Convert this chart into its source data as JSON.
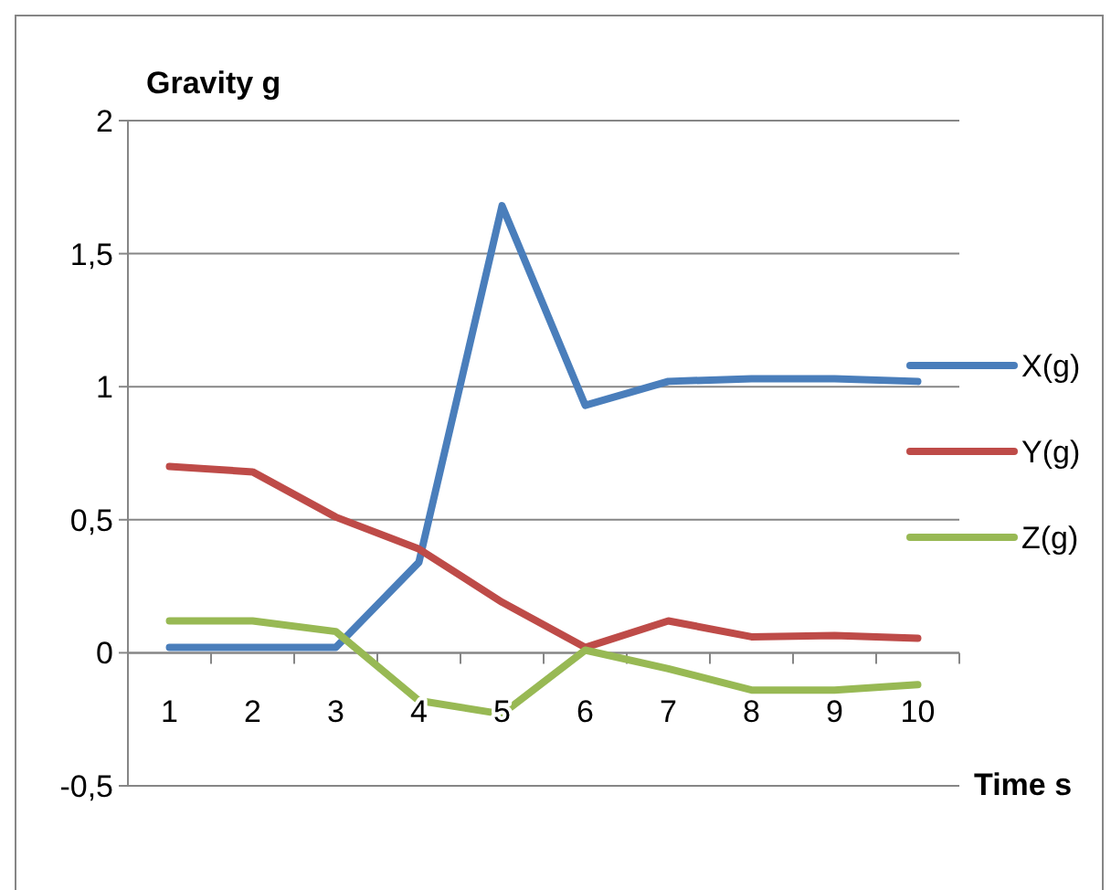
{
  "chart_data": {
    "type": "line",
    "xlabel": "Time s",
    "ylabel": "Gravity g",
    "categories": [
      "1",
      "2",
      "3",
      "4",
      "5",
      "6",
      "7",
      "8",
      "9",
      "10"
    ],
    "series": [
      {
        "name": "X(g)",
        "color": "#4a7ebb",
        "values": [
          0.02,
          0.02,
          0.02,
          0.34,
          1.68,
          0.93,
          1.02,
          1.03,
          1.03,
          1.02
        ]
      },
      {
        "name": "Y(g)",
        "color": "#be4b48",
        "values": [
          0.7,
          0.68,
          0.51,
          0.39,
          0.19,
          0.02,
          0.12,
          0.06,
          0.065,
          0.055
        ]
      },
      {
        "name": "Z(g)",
        "color": "#98b954",
        "values": [
          0.12,
          0.12,
          0.08,
          -0.18,
          -0.23,
          0.01,
          -0.06,
          -0.14,
          -0.14,
          -0.12
        ]
      }
    ],
    "ylim": [
      -0.5,
      2
    ],
    "yticks": [
      {
        "value": -0.5,
        "label": "-0,5"
      },
      0,
      {
        "value": 0.5,
        "label": "0,5"
      },
      1,
      {
        "value": 1.5,
        "label": "1,5"
      },
      2
    ],
    "grid": "y",
    "legend": "right",
    "marker": "none",
    "line_style": "solid"
  }
}
